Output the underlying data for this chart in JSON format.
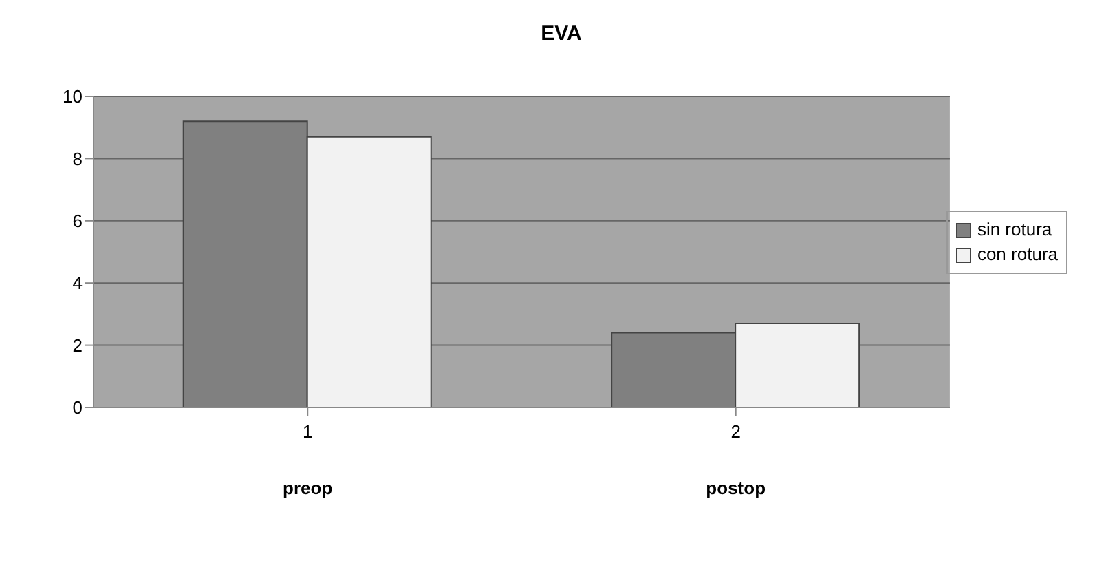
{
  "chart_data": {
    "type": "bar",
    "title": "EVA",
    "categories": [
      "1",
      "2"
    ],
    "series": [
      {
        "name": "sin rotura",
        "color": "#808080",
        "values": [
          9.2,
          2.4
        ]
      },
      {
        "name": "con rotura",
        "color": "#f2f2f2",
        "values": [
          8.7,
          2.7
        ]
      }
    ],
    "annotations": [
      "preop",
      "postop"
    ],
    "ylim": [
      0,
      10
    ],
    "yticks": [
      0,
      2,
      4,
      6,
      8,
      10
    ],
    "grid": "y",
    "legend": "right"
  }
}
